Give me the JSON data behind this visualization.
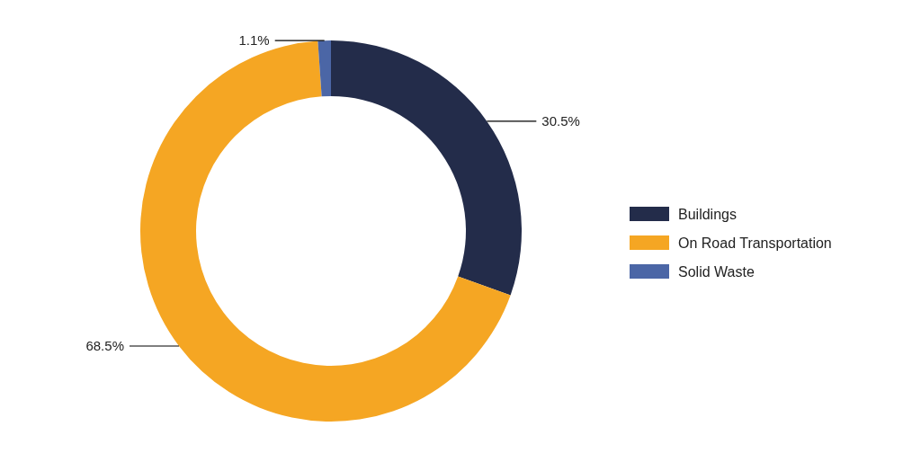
{
  "chart_data": {
    "type": "donut",
    "categories": [
      "Buildings",
      "On Road Transportation",
      "Solid Waste"
    ],
    "values": [
      30.5,
      68.5,
      1.1
    ],
    "value_labels": [
      "30.5%",
      "68.5%",
      "1.1%"
    ],
    "colors": [
      "#232c4a",
      "#f5a623",
      "#4b66a6"
    ],
    "legend": "right"
  }
}
